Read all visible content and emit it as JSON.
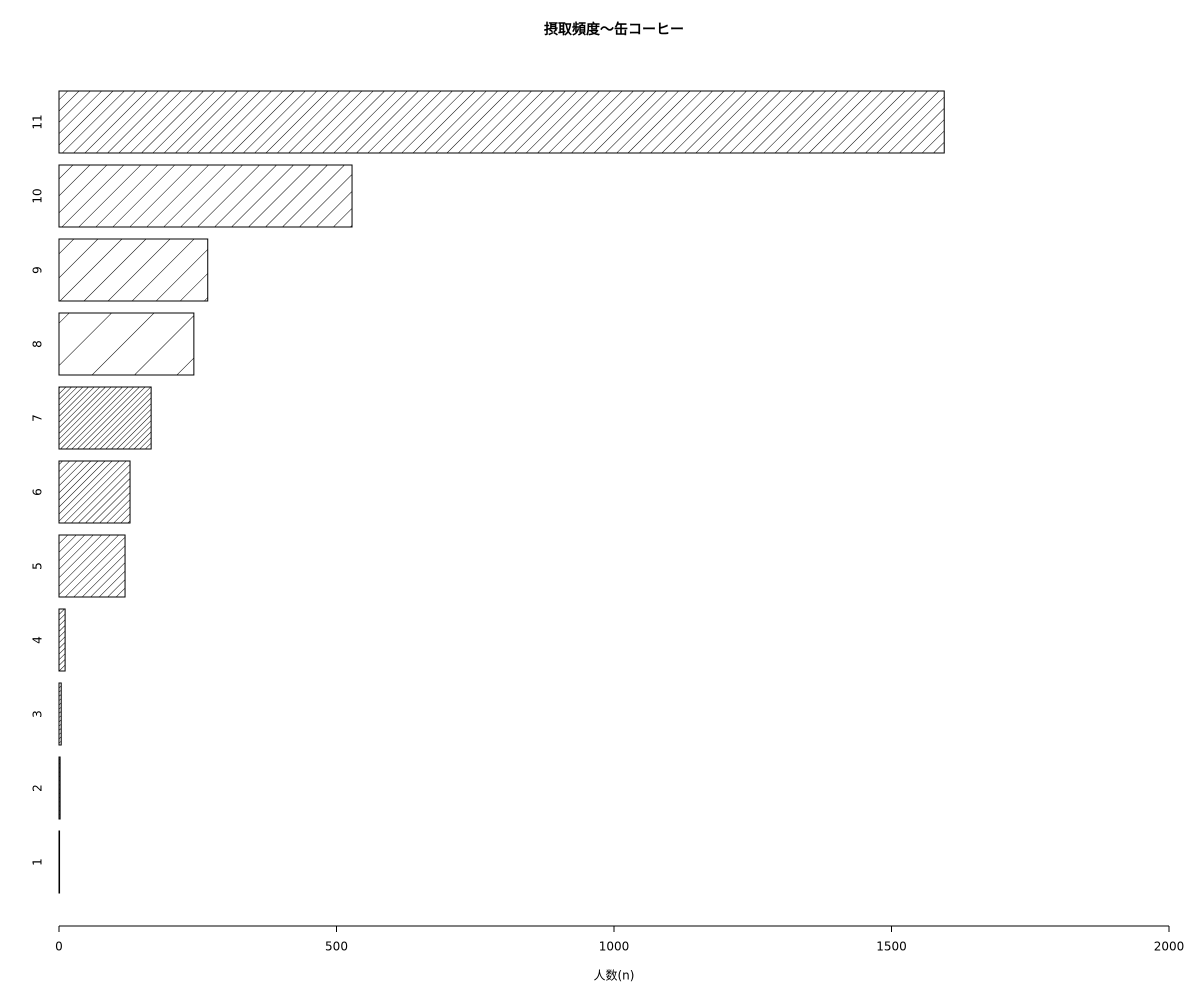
{
  "chart_data": {
    "type": "barh",
    "title": "摂取頻度〜缶コーヒー",
    "xlabel": "人数(n)",
    "categories": [
      "1",
      "2",
      "3",
      "4",
      "5",
      "6",
      "7",
      "8",
      "9",
      "10",
      "11"
    ],
    "values": [
      1,
      2,
      4,
      11,
      119,
      128,
      166,
      243,
      268,
      528,
      1595
    ],
    "color": "#000000",
    "xlim": [
      0,
      2000
    ],
    "xticks": [
      0,
      500,
      1000,
      1500,
      2000
    ],
    "grid": false
  }
}
